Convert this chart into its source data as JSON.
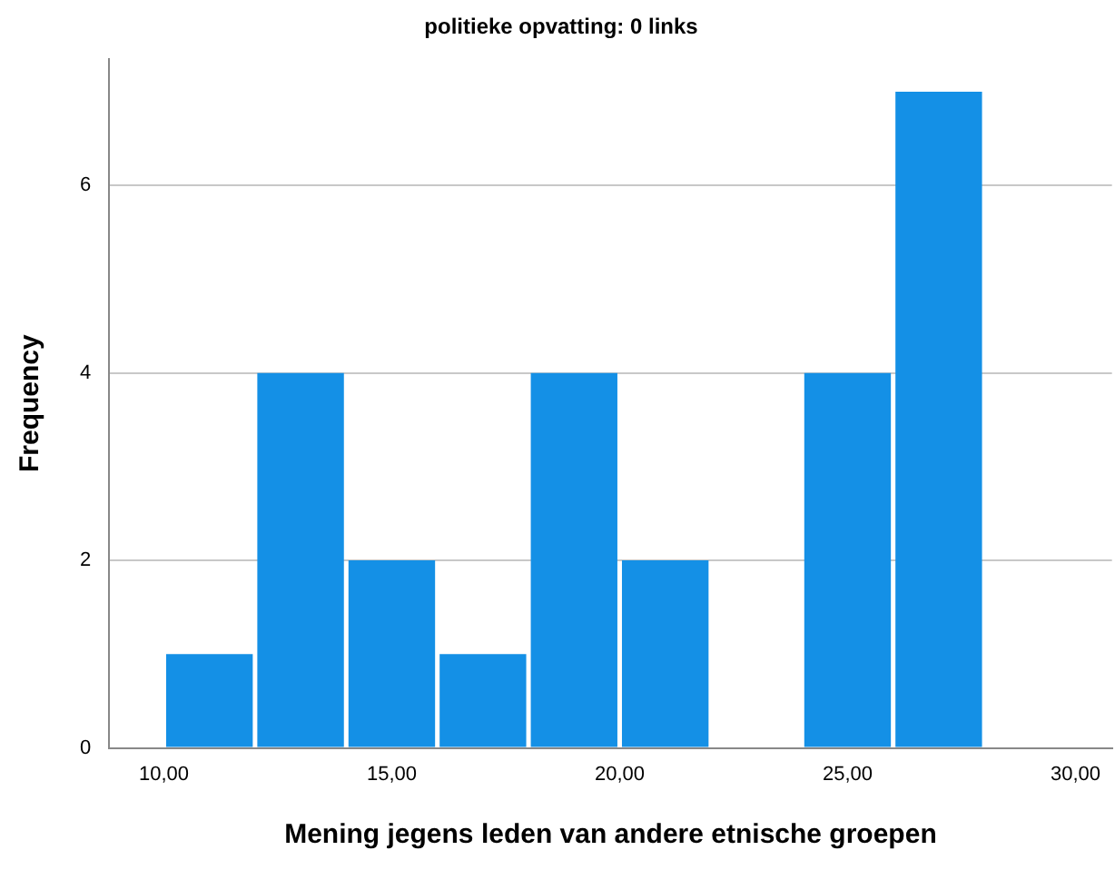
{
  "chart_data": {
    "type": "histogram",
    "title": "politieke opvatting: 0 links",
    "xlabel": "Mening jegens leden van andere etnische groepen",
    "ylabel": "Frequency",
    "bins": [
      10,
      12,
      14,
      16,
      18,
      20,
      22,
      24,
      26,
      28
    ],
    "values": [
      1,
      4,
      2,
      1,
      4,
      2,
      0,
      4,
      7
    ],
    "color": "#1490e6",
    "xlim": [
      8.8,
      30.8
    ],
    "xticks": [
      {
        "value": 10,
        "label": "10,00"
      },
      {
        "value": 15,
        "label": "15,00"
      },
      {
        "value": 20,
        "label": "20,00"
      },
      {
        "value": 25,
        "label": "25,00"
      },
      {
        "value": 30,
        "label": "30,00"
      }
    ],
    "ylim": [
      0,
      7.35
    ],
    "yticks": [
      0,
      2,
      4,
      6
    ],
    "grid": "y",
    "legend": false
  }
}
